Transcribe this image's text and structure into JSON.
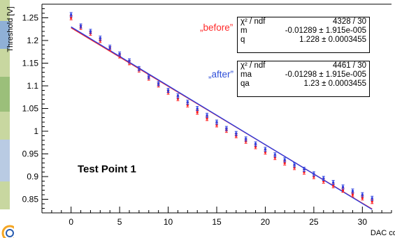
{
  "colors": {
    "before": "#ff1a1a",
    "after": "#2b3fe0",
    "axis": "#000000",
    "grid": "#000000"
  },
  "figure": {
    "note": "Test Point 1",
    "before_box": {
      "caption": "„before”",
      "rows": [
        {
          "key": "χ² / ndf",
          "value": "4328 / 30"
        },
        {
          "key": "m",
          "value": "-0.01289 ± 1.915e-005"
        },
        {
          "key": "q",
          "value": "1.228 ± 0.0003455"
        }
      ]
    },
    "after_box": {
      "caption": "„after”",
      "rows": [
        {
          "key": "χ² / ndf",
          "value": "4461 / 30"
        },
        {
          "key": "ma",
          "value": "-0.01298 ± 1.915e-005"
        },
        {
          "key": "qa",
          "value": "1.23 ± 0.0003455"
        }
      ]
    }
  },
  "chart_data": {
    "type": "scatter",
    "title": "",
    "xlabel": "DAC code",
    "ylabel": "Threshold [V]",
    "xlim": [
      -3,
      33
    ],
    "ylim": [
      0.82,
      1.28
    ],
    "x_ticks": [
      0,
      5,
      10,
      15,
      20,
      25,
      30
    ],
    "y_ticks": [
      0.85,
      0.9,
      0.95,
      1,
      1.05,
      1.1,
      1.15,
      1.2,
      1.25
    ],
    "y_tick_labels": [
      "0.85",
      "0.9",
      "0.95",
      "1",
      "1.05",
      "1.1",
      "1.15",
      "1.2",
      "1.25"
    ],
    "grid": false,
    "series": [
      {
        "name": "before",
        "color": "#ff1a1a",
        "x": [
          0,
          1,
          2,
          3,
          4,
          5,
          6,
          7,
          8,
          9,
          10,
          11,
          12,
          13,
          14,
          15,
          16,
          17,
          18,
          19,
          20,
          21,
          22,
          23,
          24,
          25,
          26,
          27,
          28,
          29,
          30,
          31
        ],
        "y": [
          1.25,
          1.229,
          1.216,
          1.2,
          1.182,
          1.166,
          1.151,
          1.135,
          1.117,
          1.102,
          1.086,
          1.072,
          1.058,
          1.042,
          1.028,
          1.014,
          1.002,
          0.99,
          0.978,
          0.966,
          0.954,
          0.942,
          0.93,
          0.92,
          0.91,
          0.9,
          0.89,
          0.88,
          0.87,
          0.86,
          0.853,
          0.845
        ],
        "fit": {
          "slope": -0.01289,
          "intercept": 1.228,
          "x_range": [
            0,
            31
          ]
        }
      },
      {
        "name": "after",
        "color": "#2b3fe0",
        "x": [
          0,
          1,
          2,
          3,
          4,
          5,
          6,
          7,
          8,
          9,
          10,
          11,
          12,
          13,
          14,
          15,
          16,
          17,
          18,
          19,
          20,
          21,
          22,
          23,
          24,
          25,
          26,
          27,
          28,
          29,
          30,
          31
        ],
        "y": [
          1.257,
          1.232,
          1.22,
          1.205,
          1.185,
          1.17,
          1.155,
          1.138,
          1.12,
          1.105,
          1.09,
          1.078,
          1.064,
          1.05,
          1.035,
          1.02,
          1.006,
          0.995,
          0.983,
          0.972,
          0.96,
          0.948,
          0.937,
          0.926,
          0.916,
          0.906,
          0.896,
          0.887,
          0.877,
          0.868,
          0.86,
          0.852
        ],
        "fit": {
          "slope": -0.01298,
          "intercept": 1.23,
          "x_range": [
            0,
            31
          ]
        }
      }
    ]
  }
}
